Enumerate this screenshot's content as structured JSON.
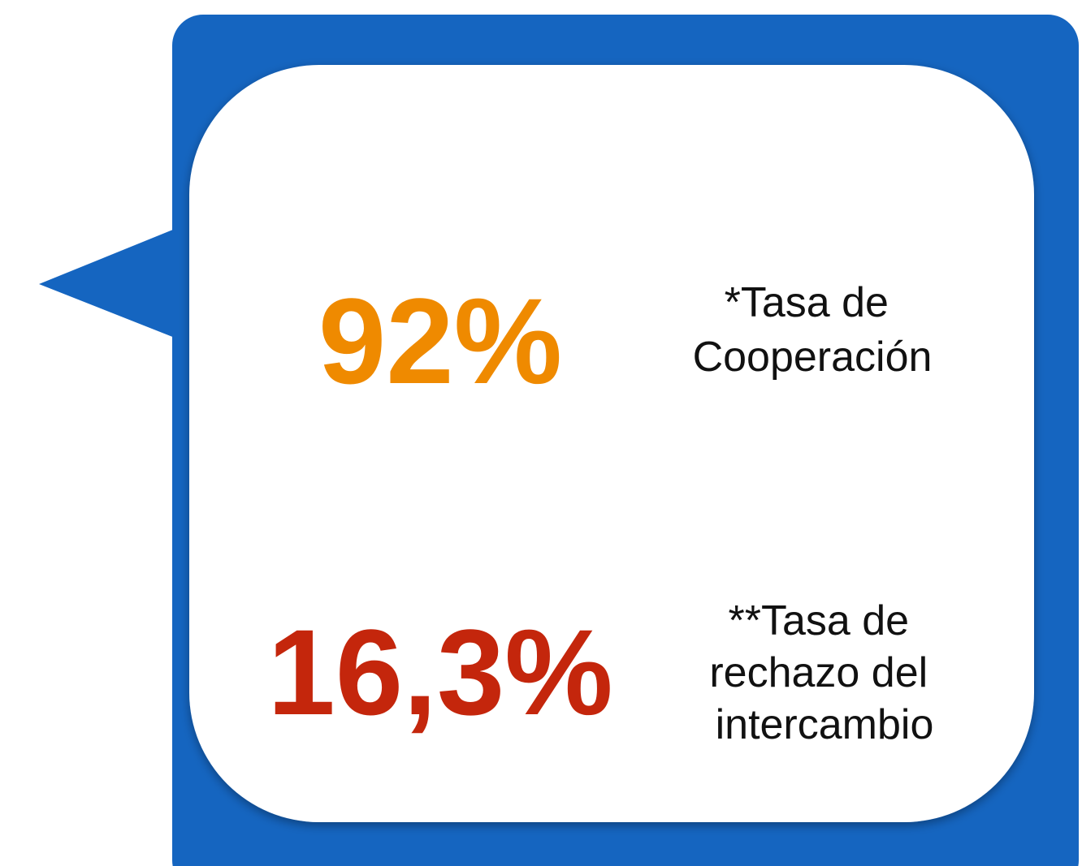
{
  "stats": [
    {
      "value": "92%",
      "color": "#ef8a00",
      "label": [
        "*Tasa de",
        "Cooperación"
      ]
    },
    {
      "value": "16,3%",
      "color": "#c4260c",
      "label": [
        "**Tasa de",
        "rechazo del",
        "intercambio"
      ]
    }
  ]
}
